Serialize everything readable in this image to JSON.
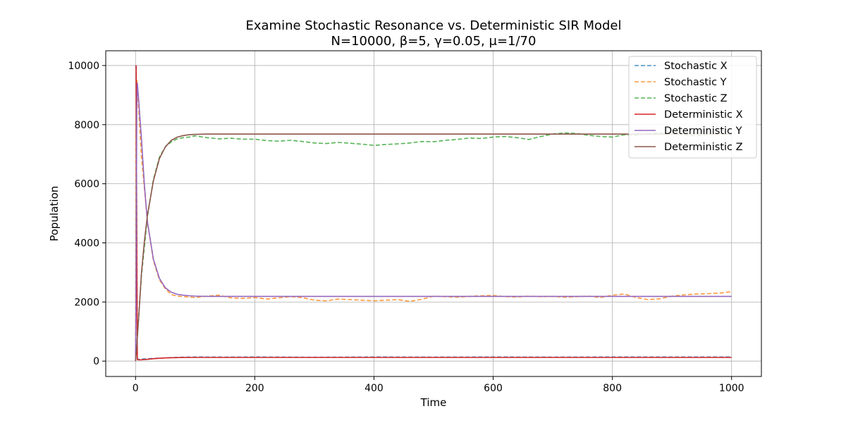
{
  "chart_data": {
    "type": "line",
    "title": "Examine Stochastic Resonance vs. Deterministic SIR Model",
    "subtitle": "N=10000, β=5, γ=0.05, μ=1/70",
    "xlabel": "Time",
    "ylabel": "Population",
    "xlim": [
      -50,
      1050
    ],
    "ylim": [
      -520,
      10500
    ],
    "xticks": [
      0,
      200,
      400,
      600,
      800,
      1000
    ],
    "yticks": [
      0,
      2000,
      4000,
      6000,
      8000,
      10000
    ],
    "grid": true,
    "legend_position": "top-right",
    "series": [
      {
        "name": "Stochastic X",
        "color": "#1f77b4",
        "style": "dashed",
        "x": [
          0,
          1,
          3,
          10,
          20,
          40,
          60,
          80,
          100,
          150,
          200,
          300,
          400,
          500,
          600,
          700,
          800,
          900,
          1000
        ],
        "y": [
          9990,
          9950,
          60,
          70,
          80,
          100,
          120,
          130,
          140,
          135,
          140,
          130,
          140,
          135,
          140,
          135,
          140,
          140,
          140
        ]
      },
      {
        "name": "Stochastic Y",
        "color": "#ff7f0e",
        "style": "dashed",
        "x": [
          0,
          1,
          2,
          3,
          5,
          10,
          20,
          30,
          40,
          50,
          60,
          70,
          80,
          90,
          100,
          120,
          140,
          160,
          180,
          200,
          220,
          240,
          260,
          280,
          300,
          320,
          340,
          360,
          380,
          400,
          420,
          440,
          460,
          480,
          500,
          520,
          540,
          560,
          580,
          600,
          620,
          640,
          660,
          680,
          700,
          720,
          740,
          760,
          780,
          800,
          820,
          840,
          860,
          880,
          900,
          920,
          940,
          960,
          980,
          1000
        ],
        "y": [
          10,
          8000,
          9500,
          9400,
          8600,
          6900,
          4700,
          3400,
          2750,
          2450,
          2250,
          2200,
          2180,
          2170,
          2150,
          2200,
          2230,
          2140,
          2120,
          2150,
          2100,
          2140,
          2180,
          2150,
          2060,
          2040,
          2100,
          2080,
          2060,
          2040,
          2060,
          2080,
          2020,
          2090,
          2200,
          2180,
          2160,
          2190,
          2210,
          2220,
          2180,
          2170,
          2200,
          2180,
          2190,
          2160,
          2180,
          2200,
          2150,
          2230,
          2270,
          2150,
          2080,
          2110,
          2200,
          2240,
          2270,
          2280,
          2300,
          2350
        ]
      },
      {
        "name": "Stochastic Z",
        "color": "#2ca02c",
        "style": "dashed",
        "x": [
          0,
          2,
          5,
          10,
          20,
          30,
          40,
          50,
          60,
          70,
          80,
          90,
          100,
          120,
          140,
          160,
          180,
          200,
          220,
          240,
          260,
          280,
          300,
          320,
          340,
          360,
          380,
          400,
          420,
          440,
          460,
          480,
          500,
          520,
          540,
          560,
          580,
          600,
          620,
          640,
          660,
          680,
          700,
          720,
          740,
          760,
          780,
          800,
          820,
          840,
          860,
          880,
          900,
          920,
          940,
          960,
          980,
          1000
        ],
        "y": [
          0,
          500,
          1400,
          2900,
          4900,
          6150,
          6900,
          7250,
          7420,
          7520,
          7560,
          7580,
          7620,
          7560,
          7520,
          7540,
          7510,
          7510,
          7460,
          7440,
          7470,
          7430,
          7380,
          7360,
          7400,
          7370,
          7340,
          7300,
          7330,
          7350,
          7380,
          7430,
          7420,
          7470,
          7500,
          7550,
          7530,
          7580,
          7600,
          7560,
          7500,
          7600,
          7680,
          7720,
          7700,
          7640,
          7600,
          7580,
          7660,
          7640,
          7700,
          7720,
          7730,
          7650,
          7620,
          7660,
          7680,
          7650
        ]
      },
      {
        "name": "Deterministic X",
        "color": "#d62728",
        "style": "solid",
        "x": [
          0,
          1,
          2,
          3,
          5,
          10,
          20,
          30,
          40,
          50,
          60,
          80,
          100,
          150,
          200,
          300,
          400,
          500,
          600,
          700,
          800,
          900,
          1000
        ],
        "y": [
          10000,
          9990,
          4000,
          60,
          40,
          45,
          60,
          80,
          95,
          108,
          115,
          122,
          124,
          125,
          125,
          125,
          125,
          125,
          125,
          125,
          125,
          125,
          125
        ]
      },
      {
        "name": "Deterministic Y",
        "color": "#9467bd",
        "style": "solid",
        "x": [
          0,
          1,
          2,
          3,
          5,
          10,
          15,
          20,
          30,
          40,
          50,
          60,
          70,
          80,
          90,
          100,
          120,
          150,
          200,
          300,
          400,
          500,
          600,
          700,
          800,
          900,
          1000
        ],
        "y": [
          1,
          3000,
          8500,
          9400,
          8900,
          7500,
          5900,
          4700,
          3450,
          2800,
          2480,
          2330,
          2260,
          2230,
          2210,
          2200,
          2190,
          2190,
          2190,
          2190,
          2190,
          2190,
          2190,
          2190,
          2190,
          2190,
          2190
        ]
      },
      {
        "name": "Deterministic Z",
        "color": "#8c564b",
        "style": "solid",
        "x": [
          0,
          2,
          5,
          10,
          15,
          20,
          30,
          40,
          50,
          60,
          70,
          80,
          90,
          100,
          120,
          150,
          200,
          300,
          400,
          500,
          600,
          700,
          800,
          900,
          1000
        ],
        "y": [
          0,
          500,
          1400,
          3000,
          4100,
          4950,
          6100,
          6850,
          7250,
          7470,
          7580,
          7630,
          7660,
          7670,
          7680,
          7680,
          7680,
          7680,
          7680,
          7680,
          7680,
          7680,
          7680,
          7680,
          7680
        ]
      }
    ]
  }
}
